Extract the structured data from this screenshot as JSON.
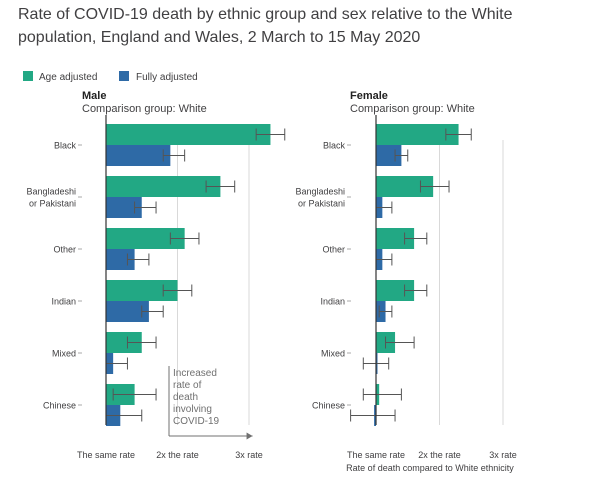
{
  "title": "Rate of COVID-19 death by ethnic group and sex relative to the White population, England and Wales, 2 March to 15 May 2020",
  "colors": {
    "age_adjusted": "#22a884",
    "fully_adjusted": "#2e6aa6",
    "text": "#414042",
    "axis": "#333333",
    "grid": "#d9d9d9",
    "error": "#555555"
  },
  "chart_data": [
    {
      "type": "bar",
      "orientation": "horizontal",
      "panel": "Male",
      "subtitle": "Comparison group: White",
      "categories": [
        "Black",
        "Bangladeshi or Pakistani",
        "Other",
        "Indian",
        "Mixed",
        "Chinese"
      ],
      "category_lines": [
        [
          "Black"
        ],
        [
          "Bangladeshi",
          "or Pakistani"
        ],
        [
          "Other"
        ],
        [
          "Indian"
        ],
        [
          "Mixed"
        ],
        [
          "Chinese"
        ]
      ],
      "series": [
        {
          "name": "Age adjusted",
          "values": [
            3.3,
            2.6,
            2.1,
            2.0,
            1.5,
            1.4
          ],
          "ci_low": [
            3.1,
            2.4,
            1.9,
            1.8,
            1.3,
            1.1
          ],
          "ci_high": [
            3.5,
            2.8,
            2.3,
            2.2,
            1.7,
            1.7
          ]
        },
        {
          "name": "Fully adjusted",
          "values": [
            1.9,
            1.5,
            1.4,
            1.6,
            1.1,
            1.2
          ],
          "ci_low": [
            1.8,
            1.4,
            1.3,
            1.5,
            1.0,
            1.0
          ],
          "ci_high": [
            2.1,
            1.7,
            1.6,
            1.8,
            1.3,
            1.5
          ]
        }
      ],
      "xlim": [
        0.5,
        3.3
      ],
      "xticks": [
        1,
        2,
        3
      ],
      "xtick_labels": [
        "The same rate",
        "2x the rate",
        "3x rate"
      ],
      "annotation": [
        "Increased",
        "rate of",
        "death",
        "involving",
        "COVID-19"
      ]
    },
    {
      "type": "bar",
      "orientation": "horizontal",
      "panel": "Female",
      "subtitle": "Comparison group: White",
      "categories": [
        "Black",
        "Bangladeshi or Pakistani",
        "Other",
        "Indian",
        "Mixed",
        "Chinese"
      ],
      "category_lines": [
        [
          "Black"
        ],
        [
          "Bangladeshi",
          "or Pakistani"
        ],
        [
          "Other"
        ],
        [
          "Indian"
        ],
        [
          "Mixed"
        ],
        [
          "Chinese"
        ]
      ],
      "series": [
        {
          "name": "Age adjusted",
          "values": [
            2.3,
            1.9,
            1.6,
            1.6,
            1.3,
            1.05
          ],
          "ci_low": [
            2.1,
            1.7,
            1.45,
            1.45,
            1.15,
            0.8
          ],
          "ci_high": [
            2.5,
            2.15,
            1.8,
            1.8,
            1.6,
            1.4
          ]
        },
        {
          "name": "Fully adjusted",
          "values": [
            1.4,
            1.1,
            1.1,
            1.15,
            1.0,
            0.97
          ],
          "ci_low": [
            1.3,
            1.0,
            1.0,
            1.05,
            0.8,
            0.6
          ],
          "ci_high": [
            1.5,
            1.25,
            1.25,
            1.25,
            1.2,
            1.3
          ]
        }
      ],
      "xlim": [
        0.5,
        3.3
      ],
      "xticks": [
        1,
        2,
        3
      ],
      "xtick_labels": [
        "The same rate",
        "2x the rate",
        "3x rate"
      ],
      "xlabel": "Rate of death compared to White ethnicity"
    }
  ],
  "legend": {
    "placement": "top-left"
  }
}
